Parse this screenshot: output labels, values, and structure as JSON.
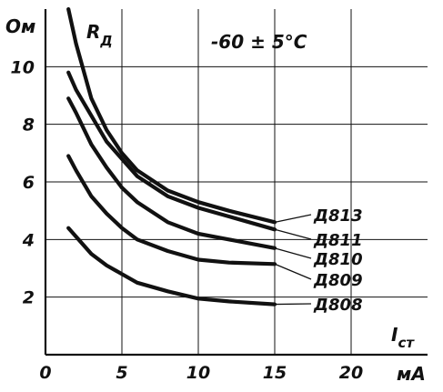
{
  "chart_data": {
    "type": "line",
    "title": "",
    "annotation": "-60 ± 5°C",
    "ylabel_main": "R",
    "ylabel_sub": "Д",
    "y_unit": "Ом",
    "xlabel_main": "I",
    "xlabel_sub": "ст",
    "x_unit": "мА",
    "xlim": [
      0,
      25
    ],
    "ylim": [
      0,
      12
    ],
    "x_ticks": [
      0,
      5,
      10,
      15,
      20
    ],
    "x_tick_labels": [
      "0",
      "5",
      "10",
      "15",
      "20"
    ],
    "y_ticks": [
      2,
      4,
      6,
      8,
      10
    ],
    "y_tick_labels": [
      "2",
      "4",
      "6",
      "8",
      "10"
    ],
    "grid": true,
    "series": [
      {
        "name": "Д813",
        "x": [
          1.5,
          2,
          3,
          4,
          5,
          6,
          8,
          10,
          12,
          15
        ],
        "y": [
          12,
          10.8,
          8.9,
          7.8,
          7,
          6.4,
          5.7,
          5.3,
          5,
          4.6
        ]
      },
      {
        "name": "Д811",
        "x": [
          1.5,
          2,
          3,
          4,
          5,
          6,
          8,
          10,
          12,
          15
        ],
        "y": [
          9.8,
          9.2,
          8.3,
          7.4,
          6.8,
          6.2,
          5.5,
          5.1,
          4.8,
          4.35
        ]
      },
      {
        "name": "Д810",
        "x": [
          1.5,
          2,
          3,
          4,
          5,
          6,
          8,
          10,
          12,
          15
        ],
        "y": [
          8.9,
          8.4,
          7.3,
          6.5,
          5.8,
          5.3,
          4.6,
          4.2,
          4,
          3.7
        ]
      },
      {
        "name": "Д809",
        "x": [
          1.5,
          2,
          3,
          4,
          5,
          6,
          8,
          10,
          12,
          15
        ],
        "y": [
          6.9,
          6.4,
          5.5,
          4.9,
          4.4,
          4,
          3.6,
          3.3,
          3.2,
          3.15
        ]
      },
      {
        "name": "Д808",
        "x": [
          1.5,
          2,
          3,
          4,
          5,
          6,
          8,
          10,
          12,
          15
        ],
        "y": [
          4.4,
          4.1,
          3.5,
          3.1,
          2.8,
          2.5,
          2.2,
          1.95,
          1.85,
          1.75
        ]
      }
    ]
  }
}
